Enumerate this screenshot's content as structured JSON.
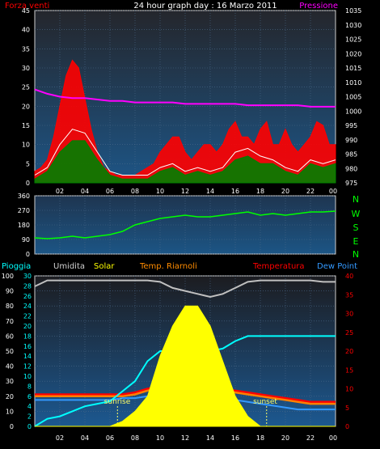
{
  "chart_data": [
    {
      "type": "line",
      "panel": "wind_pressure",
      "title": "24 hour graph day : 16 Marzo 2011",
      "left_label": "Forza venti",
      "right_label": "Pressione",
      "x_ticks": [
        "02",
        "04",
        "06",
        "08",
        "10",
        "12",
        "14",
        "16",
        "18",
        "20",
        "22",
        "00"
      ],
      "left_axis": {
        "ticks": [
          0,
          5,
          10,
          15,
          20,
          25,
          30,
          35,
          40,
          45
        ],
        "ylim": [
          0,
          45
        ]
      },
      "right_axis": {
        "ticks": [
          975,
          980,
          985,
          990,
          995,
          1000,
          1005,
          1010,
          1015,
          1020,
          1025,
          1030,
          1035
        ],
        "ylim": [
          975,
          1035
        ]
      },
      "grid": true,
      "series": [
        {
          "key": "gust",
          "color": "#ff0000",
          "x": [
            0,
            0.5,
            1,
            1.5,
            2,
            2.5,
            3,
            3.5,
            4,
            4.5,
            5,
            5.5,
            6,
            6.5,
            7,
            7.5,
            8,
            8.5,
            9,
            9.5,
            10,
            10.5,
            11,
            11.5,
            12,
            12.5,
            13,
            13.5,
            14,
            14.5,
            15,
            15.5,
            16,
            16.5,
            17,
            17.5,
            18,
            18.5,
            19,
            19.5,
            20,
            20.5,
            21,
            21.5,
            22,
            22.5,
            23,
            23.5,
            24
          ],
          "values": [
            3,
            4,
            6,
            12,
            20,
            28,
            32,
            30,
            22,
            14,
            8,
            4,
            3,
            2,
            2,
            2,
            2,
            3,
            4,
            5,
            8,
            10,
            12,
            12,
            8,
            6,
            8,
            10,
            10,
            8,
            10,
            14,
            16,
            12,
            12,
            10,
            14,
            16,
            10,
            10,
            14,
            10,
            8,
            10,
            12,
            16,
            15,
            10,
            10
          ]
        },
        {
          "key": "speed",
          "color": "#ffffff",
          "x": [
            0,
            1,
            2,
            3,
            4,
            5,
            6,
            7,
            8,
            9,
            10,
            11,
            12,
            13,
            14,
            15,
            16,
            17,
            18,
            19,
            20,
            21,
            22,
            23,
            24
          ],
          "values": [
            2,
            4,
            10,
            14,
            13,
            8,
            3,
            2,
            2,
            2,
            4,
            5,
            3,
            4,
            3,
            4,
            8,
            9,
            7,
            6,
            4,
            3,
            6,
            5,
            6
          ]
        },
        {
          "key": "average",
          "color": "#008000",
          "x": [
            0,
            1,
            2,
            3,
            4,
            5,
            6,
            7,
            8,
            9,
            10,
            11,
            12,
            13,
            14,
            15,
            16,
            17,
            18,
            19,
            20,
            21,
            22,
            23,
            24
          ],
          "values": [
            1,
            3,
            8,
            11,
            11,
            6,
            2,
            1,
            1,
            1,
            3,
            4,
            2,
            3,
            2,
            3,
            6,
            7,
            5,
            5,
            3,
            2,
            5,
            4,
            5
          ]
        },
        {
          "key": "pressure",
          "color": "#ff00ff",
          "axis": "right",
          "x": [
            0,
            1,
            2,
            3,
            4,
            5,
            6,
            7,
            8,
            9,
            10,
            11,
            12,
            13,
            14,
            15,
            16,
            17,
            18,
            19,
            20,
            21,
            22,
            23,
            24
          ],
          "values": [
            1007.5,
            1006,
            1005,
            1004.5,
            1004.5,
            1004,
            1003.5,
            1003.5,
            1003,
            1003,
            1003,
            1003,
            1002.5,
            1002.5,
            1002.5,
            1002.5,
            1002.5,
            1002,
            1002,
            1002,
            1002,
            1002,
            1001.5,
            1001.5,
            1001.5
          ]
        }
      ]
    },
    {
      "type": "line",
      "panel": "wind_direction",
      "left_axis": {
        "ticks": [
          0,
          90,
          180,
          270,
          360
        ],
        "ylim": [
          0,
          360
        ]
      },
      "compass_labels": [
        "N",
        "W",
        "S",
        "E",
        "N"
      ],
      "grid": true,
      "series": [
        {
          "key": "direction",
          "color": "#00ff00",
          "x": [
            0,
            1,
            2,
            3,
            4,
            5,
            6,
            7,
            8,
            9,
            10,
            11,
            12,
            13,
            14,
            15,
            16,
            17,
            18,
            19,
            20,
            21,
            22,
            23,
            24
          ],
          "values": [
            100,
            95,
            100,
            110,
            100,
            110,
            120,
            140,
            180,
            200,
            220,
            230,
            240,
            230,
            230,
            240,
            250,
            260,
            240,
            250,
            240,
            250,
            260,
            260,
            265
          ]
        }
      ]
    },
    {
      "type": "line",
      "panel": "weather",
      "legend": [
        "Pioggia",
        "Umidita",
        "Solar",
        "Temp. Riarnoli",
        "Temperatura",
        "Dew Point"
      ],
      "left_axis": {
        "ticks": [
          0,
          10,
          20,
          30,
          40,
          50,
          60,
          70,
          80,
          90,
          100
        ],
        "ylim": [
          0,
          100
        ]
      },
      "left_axis2": {
        "ticks": [
          0,
          2,
          4,
          6,
          8,
          10,
          12,
          14,
          16,
          18,
          20,
          22,
          24,
          26,
          28,
          30
        ],
        "ylim": [
          0,
          30
        ]
      },
      "right_axis": {
        "ticks": [
          0,
          5,
          10,
          15,
          20,
          25,
          30,
          35,
          40
        ],
        "ylim": [
          0,
          40
        ]
      },
      "x_ticks": [
        "02",
        "04",
        "06",
        "08",
        "10",
        "12",
        "14",
        "16",
        "18",
        "20",
        "22",
        "00"
      ],
      "annotations": [
        {
          "text": "sunrise",
          "x": 6.6
        },
        {
          "text": "sunset",
          "x": 18.5
        }
      ],
      "grid": true,
      "series": [
        {
          "key": "humidity",
          "color": "#c0c0c0",
          "x": [
            0,
            1,
            2,
            3,
            4,
            5,
            6,
            7,
            8,
            9,
            10,
            11,
            12,
            13,
            14,
            15,
            16,
            17,
            18,
            19,
            20,
            21,
            22,
            23,
            24
          ],
          "values": [
            93,
            97,
            97,
            97,
            97,
            97,
            97,
            97,
            97,
            97,
            96,
            92,
            90,
            88,
            86,
            88,
            92,
            96,
            97,
            97,
            97,
            97,
            97,
            96,
            96
          ]
        },
        {
          "key": "temperature",
          "color": "#ff0000",
          "x": [
            0,
            1,
            2,
            3,
            4,
            5,
            6,
            7,
            8,
            9,
            10,
            11,
            12,
            13,
            14,
            15,
            16,
            17,
            18,
            19,
            20,
            21,
            22,
            23,
            24
          ],
          "values": [
            8.5,
            8.5,
            8.5,
            8.5,
            8.5,
            8.5,
            8.5,
            8.5,
            9,
            10,
            10.5,
            11,
            11,
            11,
            10.5,
            10,
            9.5,
            9,
            8.5,
            8,
            7.5,
            7,
            6.5,
            6.5,
            6.5
          ]
        },
        {
          "key": "temp_perceived",
          "color": "#ff8000",
          "x": [
            0,
            1,
            2,
            3,
            4,
            5,
            6,
            7,
            8,
            9,
            10,
            11,
            12,
            13,
            14,
            15,
            16,
            17,
            18,
            19,
            20,
            21,
            22,
            23,
            24
          ],
          "values": [
            8,
            8,
            8,
            8,
            8,
            8,
            8,
            8,
            8.5,
            9.5,
            10,
            10.5,
            10.5,
            10.5,
            10,
            9.5,
            9,
            8.5,
            8,
            7.5,
            7,
            6.5,
            6,
            6,
            6
          ]
        },
        {
          "key": "dewpoint",
          "color": "#3399ff",
          "x": [
            0,
            1,
            2,
            3,
            4,
            5,
            6,
            7,
            8,
            9,
            10,
            11,
            12,
            13,
            14,
            15,
            16,
            17,
            18,
            19,
            20,
            21,
            22,
            23,
            24
          ],
          "values": [
            7,
            7,
            7,
            7,
            7,
            7,
            7,
            7.5,
            7.5,
            8,
            8,
            8,
            7.5,
            7,
            7,
            7,
            7,
            6.5,
            6,
            5.5,
            5,
            4.5,
            4.5,
            4.5,
            4.5
          ]
        },
        {
          "key": "rain",
          "color": "#00ffff",
          "x": [
            0,
            1,
            2,
            3,
            4,
            5,
            6,
            7,
            8,
            9,
            10,
            11,
            12,
            13,
            14,
            15,
            16,
            17,
            18,
            19,
            20,
            21,
            22,
            23,
            24
          ],
          "values": [
            0,
            1.5,
            2,
            3,
            4,
            4.5,
            5,
            7,
            9,
            13,
            15,
            15,
            15,
            15,
            15,
            15.5,
            17,
            18,
            18,
            18,
            18,
            18,
            18,
            18,
            18
          ]
        },
        {
          "key": "solar",
          "color": "#ffff00",
          "x": [
            0,
            6,
            7,
            8,
            9,
            10,
            11,
            12,
            13,
            14,
            15,
            16,
            17,
            18,
            24
          ],
          "values": [
            0,
            0,
            1,
            3,
            6,
            14,
            20,
            24,
            24,
            20,
            13,
            6,
            2,
            0,
            0
          ]
        }
      ]
    }
  ]
}
